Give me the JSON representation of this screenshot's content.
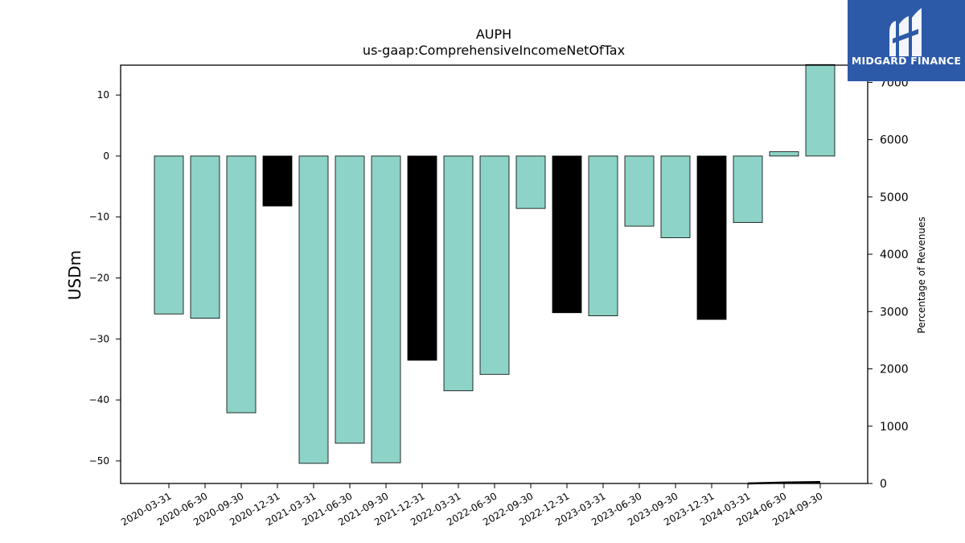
{
  "chart_data": {
    "type": "bar",
    "title": "AUPH",
    "subtitle": "us-gaap:ComprehensiveIncomeNetOfTax",
    "ylabel": "USDm",
    "y2label": "Percentage of Revenues",
    "ylim": [
      -53.7,
      14.9
    ],
    "y2lim": [
      0,
      7300
    ],
    "yticks": [
      10,
      0,
      -10,
      -20,
      -30,
      -40,
      -50
    ],
    "yticklabels": [
      "10",
      "0",
      "−10",
      "−20",
      "−30",
      "−40",
      "−50"
    ],
    "y2ticks": [
      0,
      1000,
      2000,
      3000,
      4000,
      5000,
      6000,
      7000
    ],
    "y2ticklabels": [
      "0",
      "1000",
      "2000",
      "3000",
      "4000",
      "5000",
      "6000",
      "7000"
    ],
    "categories": [
      "2020-03-31",
      "2020-06-30",
      "2020-09-30",
      "2020-12-31",
      "2021-03-31",
      "2021-06-30",
      "2021-09-30",
      "2021-12-31",
      "2022-03-31",
      "2022-06-30",
      "2022-09-30",
      "2022-12-31",
      "2023-03-31",
      "2023-06-30",
      "2023-09-30",
      "2023-12-31",
      "2024-03-31",
      "2024-06-30",
      "2024-09-30"
    ],
    "values": [
      -25.9,
      -26.6,
      -42.1,
      -8.2,
      -50.4,
      -47.1,
      -50.3,
      -33.5,
      -38.5,
      -35.8,
      -8.6,
      -25.7,
      -26.2,
      -11.5,
      -13.4,
      -26.8,
      -10.9,
      0.7,
      15.0
    ],
    "bar_colors": [
      "#8dd3c7",
      "#8dd3c7",
      "#8dd3c7",
      "#000000",
      "#8dd3c7",
      "#8dd3c7",
      "#8dd3c7",
      "#000000",
      "#8dd3c7",
      "#8dd3c7",
      "#8dd3c7",
      "#000000",
      "#8dd3c7",
      "#8dd3c7",
      "#8dd3c7",
      "#000000",
      "#8dd3c7",
      "#8dd3c7",
      "#8dd3c7"
    ],
    "secondary_line": {
      "x_start": "2024-03-31",
      "values": [
        0,
        15,
        25
      ]
    },
    "grid": false,
    "legend": "none"
  },
  "logo": {
    "text": "MIDGARD FINANCE"
  },
  "colors": {
    "bar_positive_style": "#8dd3c7",
    "bar_q4": "#000000",
    "axis": "#000000",
    "logo_bg": "#2d5aa8"
  }
}
